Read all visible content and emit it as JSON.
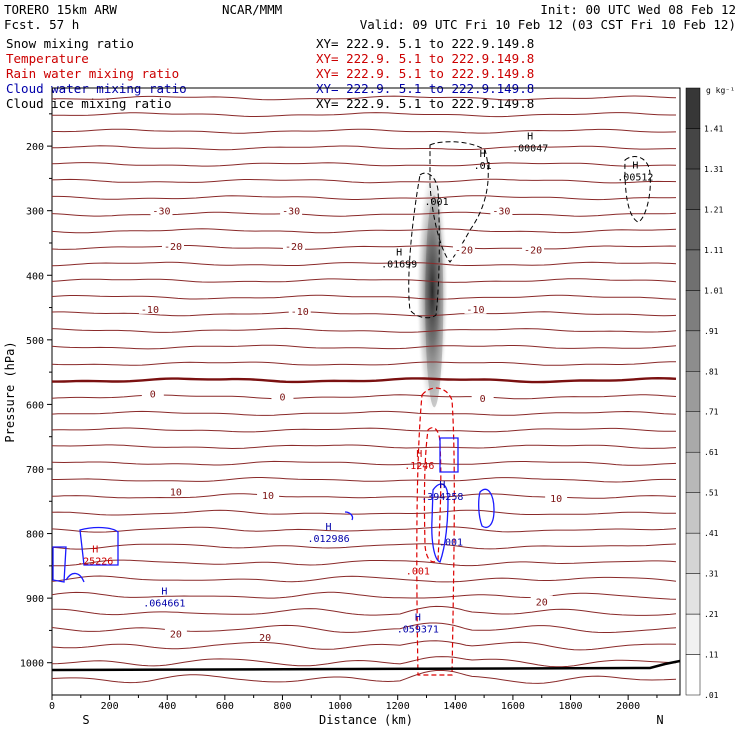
{
  "header": {
    "left_line1": "TORERO  15km ARW",
    "left_line2": "Fcst.   57 h",
    "center": "NCAR/MMM",
    "init": "Init: 00 UTC Wed 08 Feb 12",
    "valid": "Valid: 09 UTC Fri 10 Feb 12 (03 CST Fri 10 Feb 12)"
  },
  "fields": [
    {
      "name": "Snow mixing ratio",
      "xy": "XY= 222.9.  5.1 to 222.9.149.8",
      "color": "#000000"
    },
    {
      "name": "Temperature",
      "xy": "XY= 222.9.  5.1 to 222.9.149.8",
      "color": "#cc0000"
    },
    {
      "name": "Rain water mixing ratio",
      "xy": "XY= 222.9.  5.1 to 222.9.149.8",
      "color": "#cc0000"
    },
    {
      "name": "Cloud water mixing ratio",
      "xy": "XY= 222.9.  5.1 to 222.9.149.8",
      "color": "#0000aa"
    },
    {
      "name": "Cloud ice mixing ratio",
      "xy": "XY= 222.9.  5.1 to 222.9.149.8",
      "color": "#000000"
    }
  ],
  "chart_data": {
    "type": "contour cross-section",
    "xlabel": "Distance (km)",
    "ylabel": "Pressure (hPa)",
    "xlim": [
      0,
      2180
    ],
    "ylim": [
      1050,
      110
    ],
    "x_ticks": [
      0,
      200,
      400,
      600,
      800,
      1000,
      1200,
      1400,
      1600,
      1800,
      2000
    ],
    "y_ticks": [
      200,
      300,
      400,
      500,
      600,
      700,
      800,
      900,
      1000
    ],
    "end_labels": {
      "left": "S",
      "right": "N"
    },
    "colorbar": {
      "unit": "g kg⁻¹",
      "levels": [
        ".01",
        ".11",
        ".21",
        ".31",
        ".41",
        ".51",
        ".61",
        ".71",
        ".81",
        ".91",
        "1.01",
        "1.11",
        "1.21",
        "1.31",
        "1.41"
      ]
    },
    "snow_shading": {
      "center_x": 1320,
      "top_p": 230,
      "bottom_p": 620,
      "max": 1.4
    },
    "temperature_labels": [
      {
        "x": 380,
        "p": 300,
        "label": "-30"
      },
      {
        "x": 830,
        "p": 300,
        "label": "-30"
      },
      {
        "x": 1560,
        "p": 300,
        "label": "-30"
      },
      {
        "x": 420,
        "p": 355,
        "label": "-20"
      },
      {
        "x": 840,
        "p": 355,
        "label": "-20"
      },
      {
        "x": 1430,
        "p": 360,
        "label": "-20"
      },
      {
        "x": 1670,
        "p": 360,
        "label": "-20"
      },
      {
        "x": 340,
        "p": 452,
        "label": "-10"
      },
      {
        "x": 860,
        "p": 455,
        "label": "-10"
      },
      {
        "x": 1470,
        "p": 452,
        "label": "-10"
      },
      {
        "x": 350,
        "p": 583,
        "label": "0"
      },
      {
        "x": 800,
        "p": 588,
        "label": "0"
      },
      {
        "x": 1495,
        "p": 590,
        "label": "0"
      },
      {
        "x": 430,
        "p": 735,
        "label": "10"
      },
      {
        "x": 750,
        "p": 740,
        "label": "10"
      },
      {
        "x": 1750,
        "p": 745,
        "label": "10"
      },
      {
        "x": 430,
        "p": 955,
        "label": "20"
      },
      {
        "x": 740,
        "p": 960,
        "label": "20"
      },
      {
        "x": 1700,
        "p": 905,
        "label": "20"
      }
    ],
    "extrema_labels": [
      {
        "x": 1660,
        "p": 205,
        "mark": "H",
        "value": ".00047",
        "color": "#000000"
      },
      {
        "x": 2025,
        "p": 250,
        "mark": "H",
        "value": ".00512",
        "color": "#000000"
      },
      {
        "x": 1495,
        "p": 232,
        "mark": "H",
        "value": ".01",
        "color": "#000000"
      },
      {
        "x": 1335,
        "p": 288,
        "mark": "",
        "value": ".001",
        "color": "#000000"
      },
      {
        "x": 1205,
        "p": 385,
        "mark": "H",
        "value": ".01699",
        "color": "#000000"
      },
      {
        "x": 1275,
        "p": 697,
        "mark": "H",
        "value": ".1246",
        "color": "#cc0000"
      },
      {
        "x": 1270,
        "p": 860,
        "mark": "",
        "value": ".001",
        "color": "#cc0000"
      },
      {
        "x": 1355,
        "p": 745,
        "mark": "H",
        "value": ".394258",
        "color": "#0000aa"
      },
      {
        "x": 1385,
        "p": 815,
        "mark": "",
        "value": ".001",
        "color": "#0000aa"
      },
      {
        "x": 960,
        "p": 810,
        "mark": "H",
        "value": ".012986",
        "color": "#0000aa"
      },
      {
        "x": 150,
        "p": 845,
        "mark": "H",
        "value": ".25226",
        "color": "#cc0000"
      },
      {
        "x": 390,
        "p": 910,
        "mark": "H",
        "value": ".064661",
        "color": "#0000aa"
      },
      {
        "x": 1270,
        "p": 950,
        "mark": "H",
        "value": ".059371",
        "color": "#0000aa"
      }
    ]
  }
}
